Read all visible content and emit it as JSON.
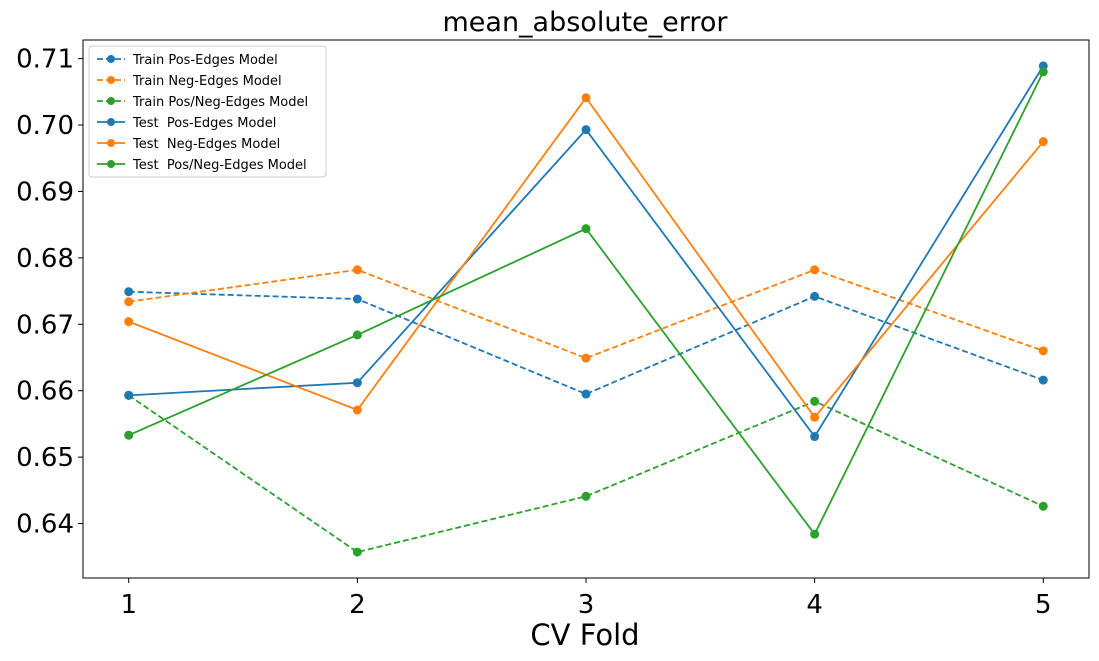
{
  "chart_data": {
    "type": "line",
    "title": "mean_absolute_error",
    "xlabel": "CV Fold",
    "ylabel": "",
    "x": [
      1,
      2,
      3,
      4,
      5
    ],
    "xticks": [
      "1",
      "2",
      "3",
      "4",
      "5"
    ],
    "yticks": [
      "0.64",
      "0.65",
      "0.66",
      "0.67",
      "0.68",
      "0.69",
      "0.70",
      "0.71"
    ],
    "ylim": [
      0.6318,
      0.7128
    ],
    "xlim": [
      0.8,
      5.2
    ],
    "grid": false,
    "legend_position": "upper-left",
    "series": [
      {
        "name": "Train Pos-Edges Model",
        "style": "dashed",
        "color": "#1f77b4",
        "values": [
          0.6749,
          0.6738,
          0.6595,
          0.6742,
          0.6616
        ]
      },
      {
        "name": "Train Neg-Edges Model",
        "style": "dashed",
        "color": "#ff7f0e",
        "values": [
          0.6734,
          0.6782,
          0.6649,
          0.6782,
          0.666
        ]
      },
      {
        "name": "Train Pos/Neg-Edges Model",
        "style": "dashed",
        "color": "#2ca02c",
        "values": [
          0.6593,
          0.6357,
          0.6441,
          0.6584,
          0.6426
        ]
      },
      {
        "name": "Test  Pos-Edges Model",
        "style": "solid",
        "color": "#1f77b4",
        "values": [
          0.6593,
          0.6612,
          0.6993,
          0.6531,
          0.7089
        ]
      },
      {
        "name": "Test  Neg-Edges Model",
        "style": "solid",
        "color": "#ff7f0e",
        "values": [
          0.6704,
          0.6571,
          0.7041,
          0.656,
          0.6975
        ]
      },
      {
        "name": "Test  Pos/Neg-Edges Model",
        "style": "solid",
        "color": "#2ca02c",
        "values": [
          0.6533,
          0.6684,
          0.6844,
          0.6384,
          0.708
        ]
      }
    ]
  }
}
